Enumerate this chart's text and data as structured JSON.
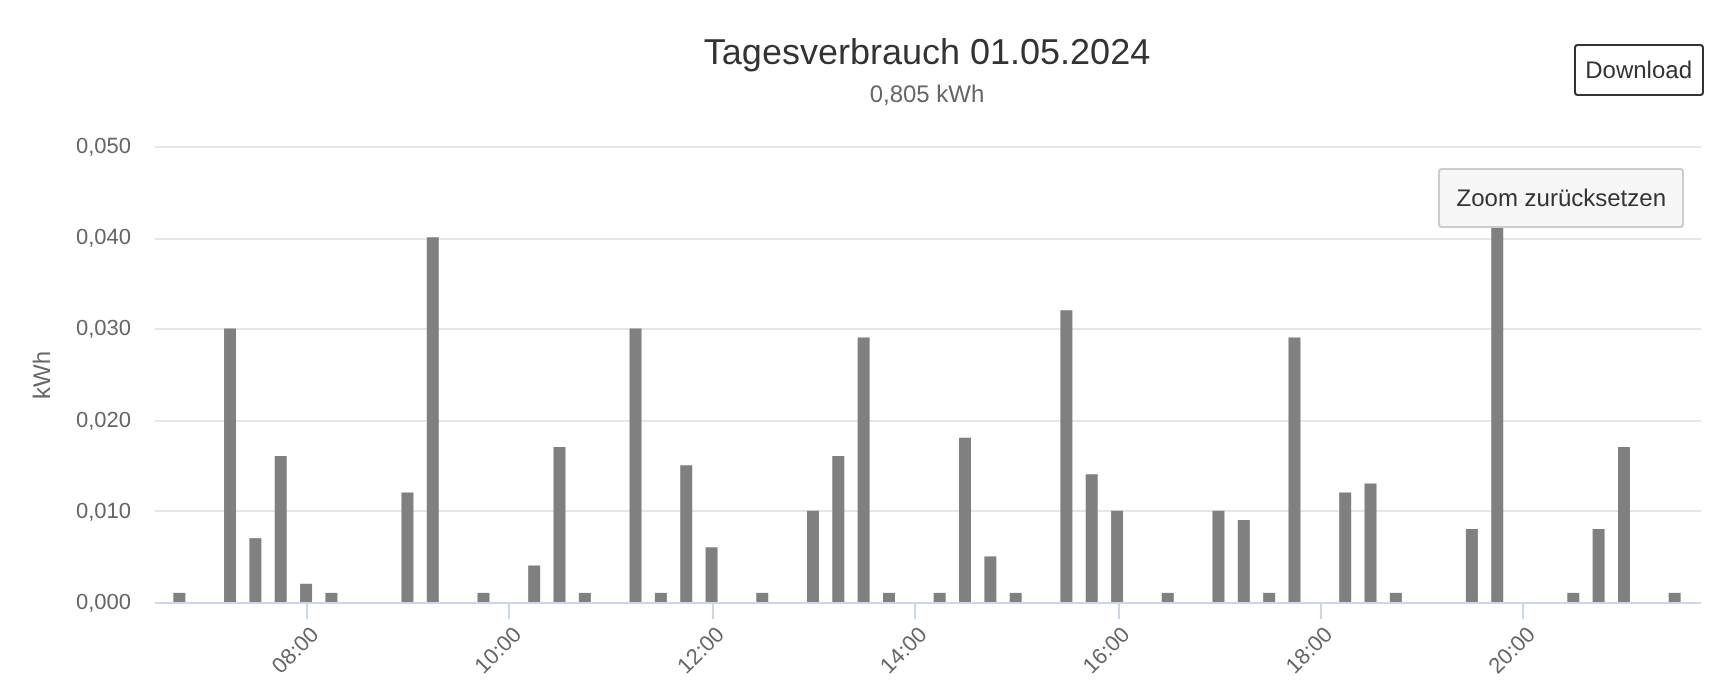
{
  "chart_data": {
    "type": "bar",
    "title": "Tagesverbrauch 01.05.2024",
    "subtitle": "0,805 kWh",
    "ylabel": "kWh",
    "x": [
      "2024-05-01T06:45",
      "2024-05-01T07:15",
      "2024-05-01T07:30",
      "2024-05-01T07:45",
      "2024-05-01T08:00",
      "2024-05-01T08:15",
      "2024-05-01T09:00",
      "2024-05-01T09:15",
      "2024-05-01T09:45",
      "2024-05-01T10:15",
      "2024-05-01T10:30",
      "2024-05-01T10:45",
      "2024-05-01T11:15",
      "2024-05-01T11:30",
      "2024-05-01T11:45",
      "2024-05-01T12:00",
      "2024-05-01T12:30",
      "2024-05-01T13:00",
      "2024-05-01T13:15",
      "2024-05-01T13:30",
      "2024-05-01T13:45",
      "2024-05-01T14:15",
      "2024-05-01T14:30",
      "2024-05-01T14:45",
      "2024-05-01T15:00",
      "2024-05-01T15:30",
      "2024-05-01T15:45",
      "2024-05-01T16:00",
      "2024-05-01T16:30",
      "2024-05-01T17:00",
      "2024-05-01T17:15",
      "2024-05-01T17:30",
      "2024-05-01T17:45",
      "2024-05-01T18:15",
      "2024-05-01T18:30",
      "2024-05-01T18:45",
      "2024-05-01T19:30",
      "2024-05-01T19:45",
      "2024-05-01T20:30",
      "2024-05-01T20:45",
      "2024-05-01T21:00",
      "2024-05-01T21:30"
    ],
    "series": [
      {
        "color": "#808080",
        "values": [
          0.001,
          0.03,
          0.007,
          0.016,
          0.002,
          0.001,
          0.012,
          0.04,
          0.001,
          0.004,
          0.017,
          0.001,
          0.03,
          0.001,
          0.015,
          0.006,
          0.001,
          0.01,
          0.016,
          0.029,
          0.001,
          0.001,
          0.018,
          0.005,
          0.001,
          0.032,
          0.014,
          0.01,
          0.001,
          0.01,
          0.009,
          0.001,
          0.029,
          0.012,
          0.013,
          0.001,
          0.008,
          0.041,
          0.001,
          0.008,
          0.017,
          0.001
        ]
      }
    ],
    "xlim": [
      "2024-05-01T06:30",
      "2024-05-01T21:45"
    ],
    "xticks": [
      {
        "value": "2024-05-01T08:00",
        "label": "08:00"
      },
      {
        "value": "2024-05-01T10:00",
        "label": "10:00"
      },
      {
        "value": "2024-05-01T12:00",
        "label": "12:00"
      },
      {
        "value": "2024-05-01T14:00",
        "label": "14:00"
      },
      {
        "value": "2024-05-01T16:00",
        "label": "16:00"
      },
      {
        "value": "2024-05-01T18:00",
        "label": "18:00"
      },
      {
        "value": "2024-05-01T20:00",
        "label": "20:00"
      }
    ],
    "ylim": [
      0,
      0.05
    ],
    "yticks": [
      {
        "value": 0,
        "label": "0,000"
      },
      {
        "value": 0.01,
        "label": "0,010"
      },
      {
        "value": 0.02,
        "label": "0,020"
      },
      {
        "value": 0.03,
        "label": "0,030"
      },
      {
        "value": 0.04,
        "label": "0,040"
      },
      {
        "value": 0.05,
        "label": "0,050"
      }
    ],
    "grid": "y",
    "legend": false,
    "annotations": [
      "Download",
      "Zoom zurücksetzen"
    ]
  }
}
